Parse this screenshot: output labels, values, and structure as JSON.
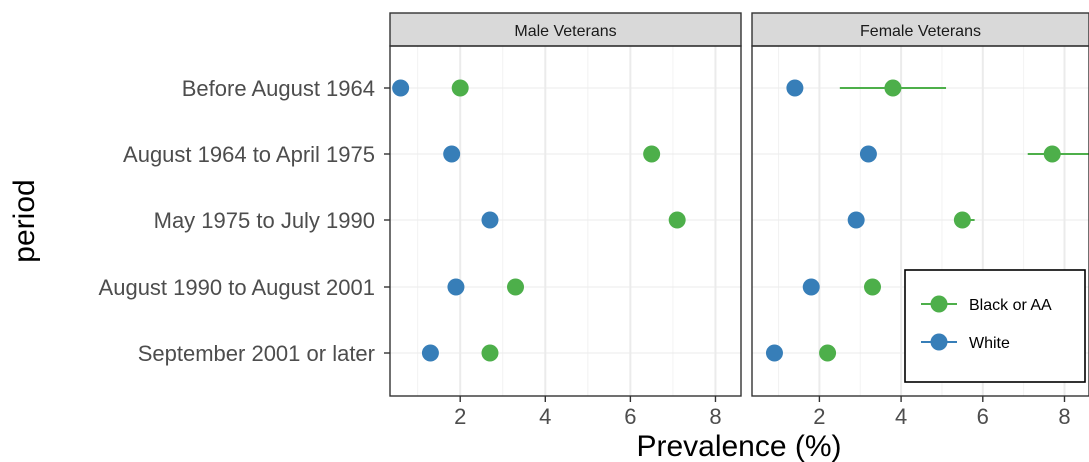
{
  "chart_data": {
    "type": "dot-errorbar",
    "xlabel": "Prevalence (%)",
    "ylabel": "period",
    "xticks": [
      2,
      4,
      6,
      8
    ],
    "xlim": [
      0.35,
      8.6
    ],
    "categories": [
      "Before August 1964",
      "August 1964 to April 1975",
      "May 1975 to July 1990",
      "August 1990 to August 2001",
      "September 2001 or later"
    ],
    "series": [
      {
        "name": "Black or AA",
        "color": "#4daf4a"
      },
      {
        "name": "White",
        "color": "#377eb8"
      }
    ],
    "panels": [
      {
        "title": "Male Veterans",
        "points": {
          "Black or AA": [
            {
              "value": 2.0,
              "low": 2.0,
              "high": 2.0
            },
            {
              "value": 6.5,
              "low": 6.5,
              "high": 6.5
            },
            {
              "value": 7.1,
              "low": 7.1,
              "high": 7.1
            },
            {
              "value": 3.3,
              "low": 3.3,
              "high": 3.3
            },
            {
              "value": 2.7,
              "low": 2.7,
              "high": 2.7
            }
          ],
          "White": [
            {
              "value": 0.6,
              "low": 0.6,
              "high": 0.6
            },
            {
              "value": 1.8,
              "low": 1.8,
              "high": 1.8
            },
            {
              "value": 2.7,
              "low": 2.7,
              "high": 2.7
            },
            {
              "value": 1.9,
              "low": 1.9,
              "high": 1.9
            },
            {
              "value": 1.3,
              "low": 1.3,
              "high": 1.3
            }
          ]
        }
      },
      {
        "title": "Female Veterans",
        "points": {
          "Black or AA": [
            {
              "value": 3.8,
              "low": 2.5,
              "high": 5.1
            },
            {
              "value": 7.7,
              "low": 7.1,
              "high": 8.6
            },
            {
              "value": 5.5,
              "low": 5.3,
              "high": 5.8
            },
            {
              "value": 3.3,
              "low": 3.3,
              "high": 3.3
            },
            {
              "value": 2.2,
              "low": 2.1,
              "high": 2.3
            }
          ],
          "White": [
            {
              "value": 1.4,
              "low": 1.3,
              "high": 1.6
            },
            {
              "value": 3.2,
              "low": 3.2,
              "high": 3.2
            },
            {
              "value": 2.9,
              "low": 2.9,
              "high": 2.9
            },
            {
              "value": 1.8,
              "low": 1.8,
              "high": 1.8
            },
            {
              "value": 0.9,
              "low": 0.9,
              "high": 0.9
            }
          ]
        }
      }
    ],
    "legend": {
      "position": "bottom-right-inside",
      "entries": [
        "Black or AA",
        "White"
      ]
    },
    "grid": true
  }
}
